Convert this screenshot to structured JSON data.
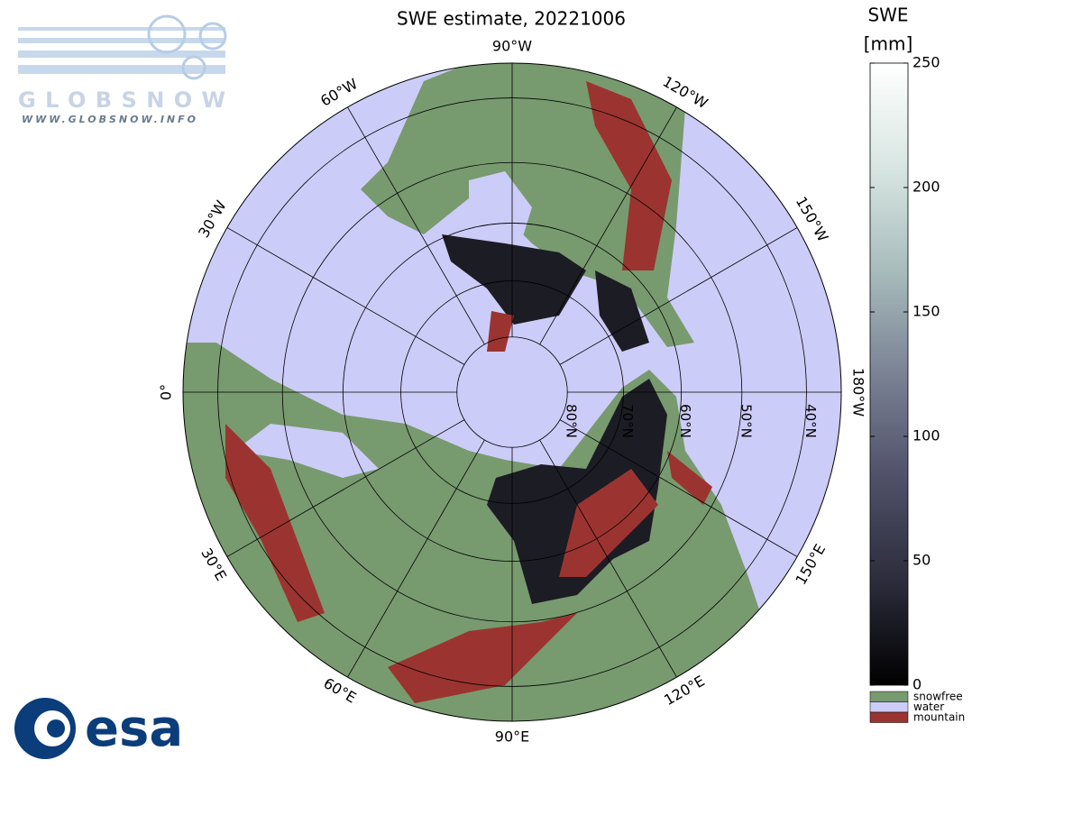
{
  "map": {
    "title": "SWE estimate, 20221006",
    "colorbar": {
      "title": "SWE",
      "unit": "[mm]",
      "lim": [
        0,
        250
      ],
      "ticks": [
        0,
        50,
        100,
        150,
        200,
        250
      ],
      "colormap": [
        "#000000",
        "#2c2c3c",
        "#505068",
        "#7a8294",
        "#a8bcbc",
        "#d8e6e2",
        "#ffffff"
      ]
    },
    "legend": [
      {
        "name": "snowfree",
        "color": "#789a6f"
      },
      {
        "name": "water",
        "color": "#ccccf8"
      },
      {
        "name": "mountain",
        "color": "#9b3430"
      }
    ],
    "lon_ticks": [
      {
        "value": -90,
        "label": "90°W"
      },
      {
        "value": -60,
        "label": "60°W"
      },
      {
        "value": -30,
        "label": "30°W"
      },
      {
        "value": 0,
        "label": "0°"
      },
      {
        "value": 30,
        "label": "30°E"
      },
      {
        "value": 60,
        "label": "60°E"
      },
      {
        "value": 90,
        "label": "90°E"
      },
      {
        "value": 120,
        "label": "120°E"
      },
      {
        "value": 150,
        "label": "150°E"
      },
      {
        "value": 180,
        "label": "180°W"
      },
      {
        "value": -150,
        "label": "150°W"
      },
      {
        "value": -120,
        "label": "120°W"
      }
    ],
    "lat_ticks": [
      {
        "value": 80,
        "label": "80°N"
      },
      {
        "value": 70,
        "label": "70°N"
      },
      {
        "value": 60,
        "label": "60°N"
      },
      {
        "value": 50,
        "label": "50°N"
      },
      {
        "value": 40,
        "label": "40°N"
      }
    ],
    "logos": {
      "globsnow": "GLOBSNOW",
      "url": "WWW.GLOBSNOW.INFO",
      "esa": "esa"
    }
  }
}
